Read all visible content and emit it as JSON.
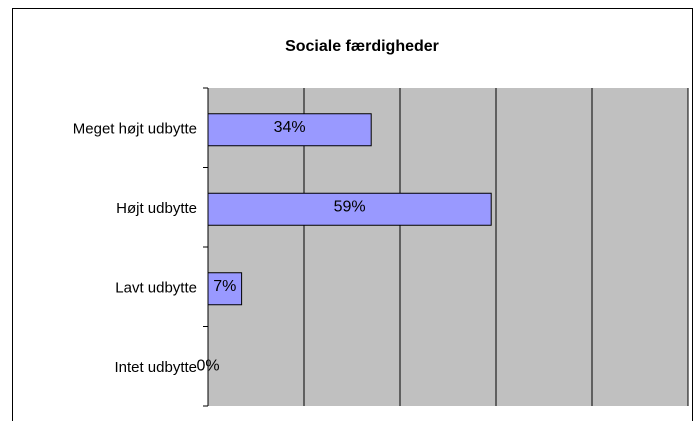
{
  "chart_data": {
    "type": "barh",
    "title": "Sociale færdigheder",
    "categories": [
      "Meget højt udbytte",
      "Højt udbytte",
      "Lavt udbytte",
      "Intet udbytte"
    ],
    "values": [
      34,
      59,
      7,
      0
    ],
    "value_labels": [
      "34%",
      "59%",
      "7%",
      "0%"
    ],
    "color": "#9999ff",
    "xlim": [
      0,
      100
    ],
    "xticks": [
      0,
      20,
      40,
      60,
      80,
      100
    ],
    "grid": true
  }
}
